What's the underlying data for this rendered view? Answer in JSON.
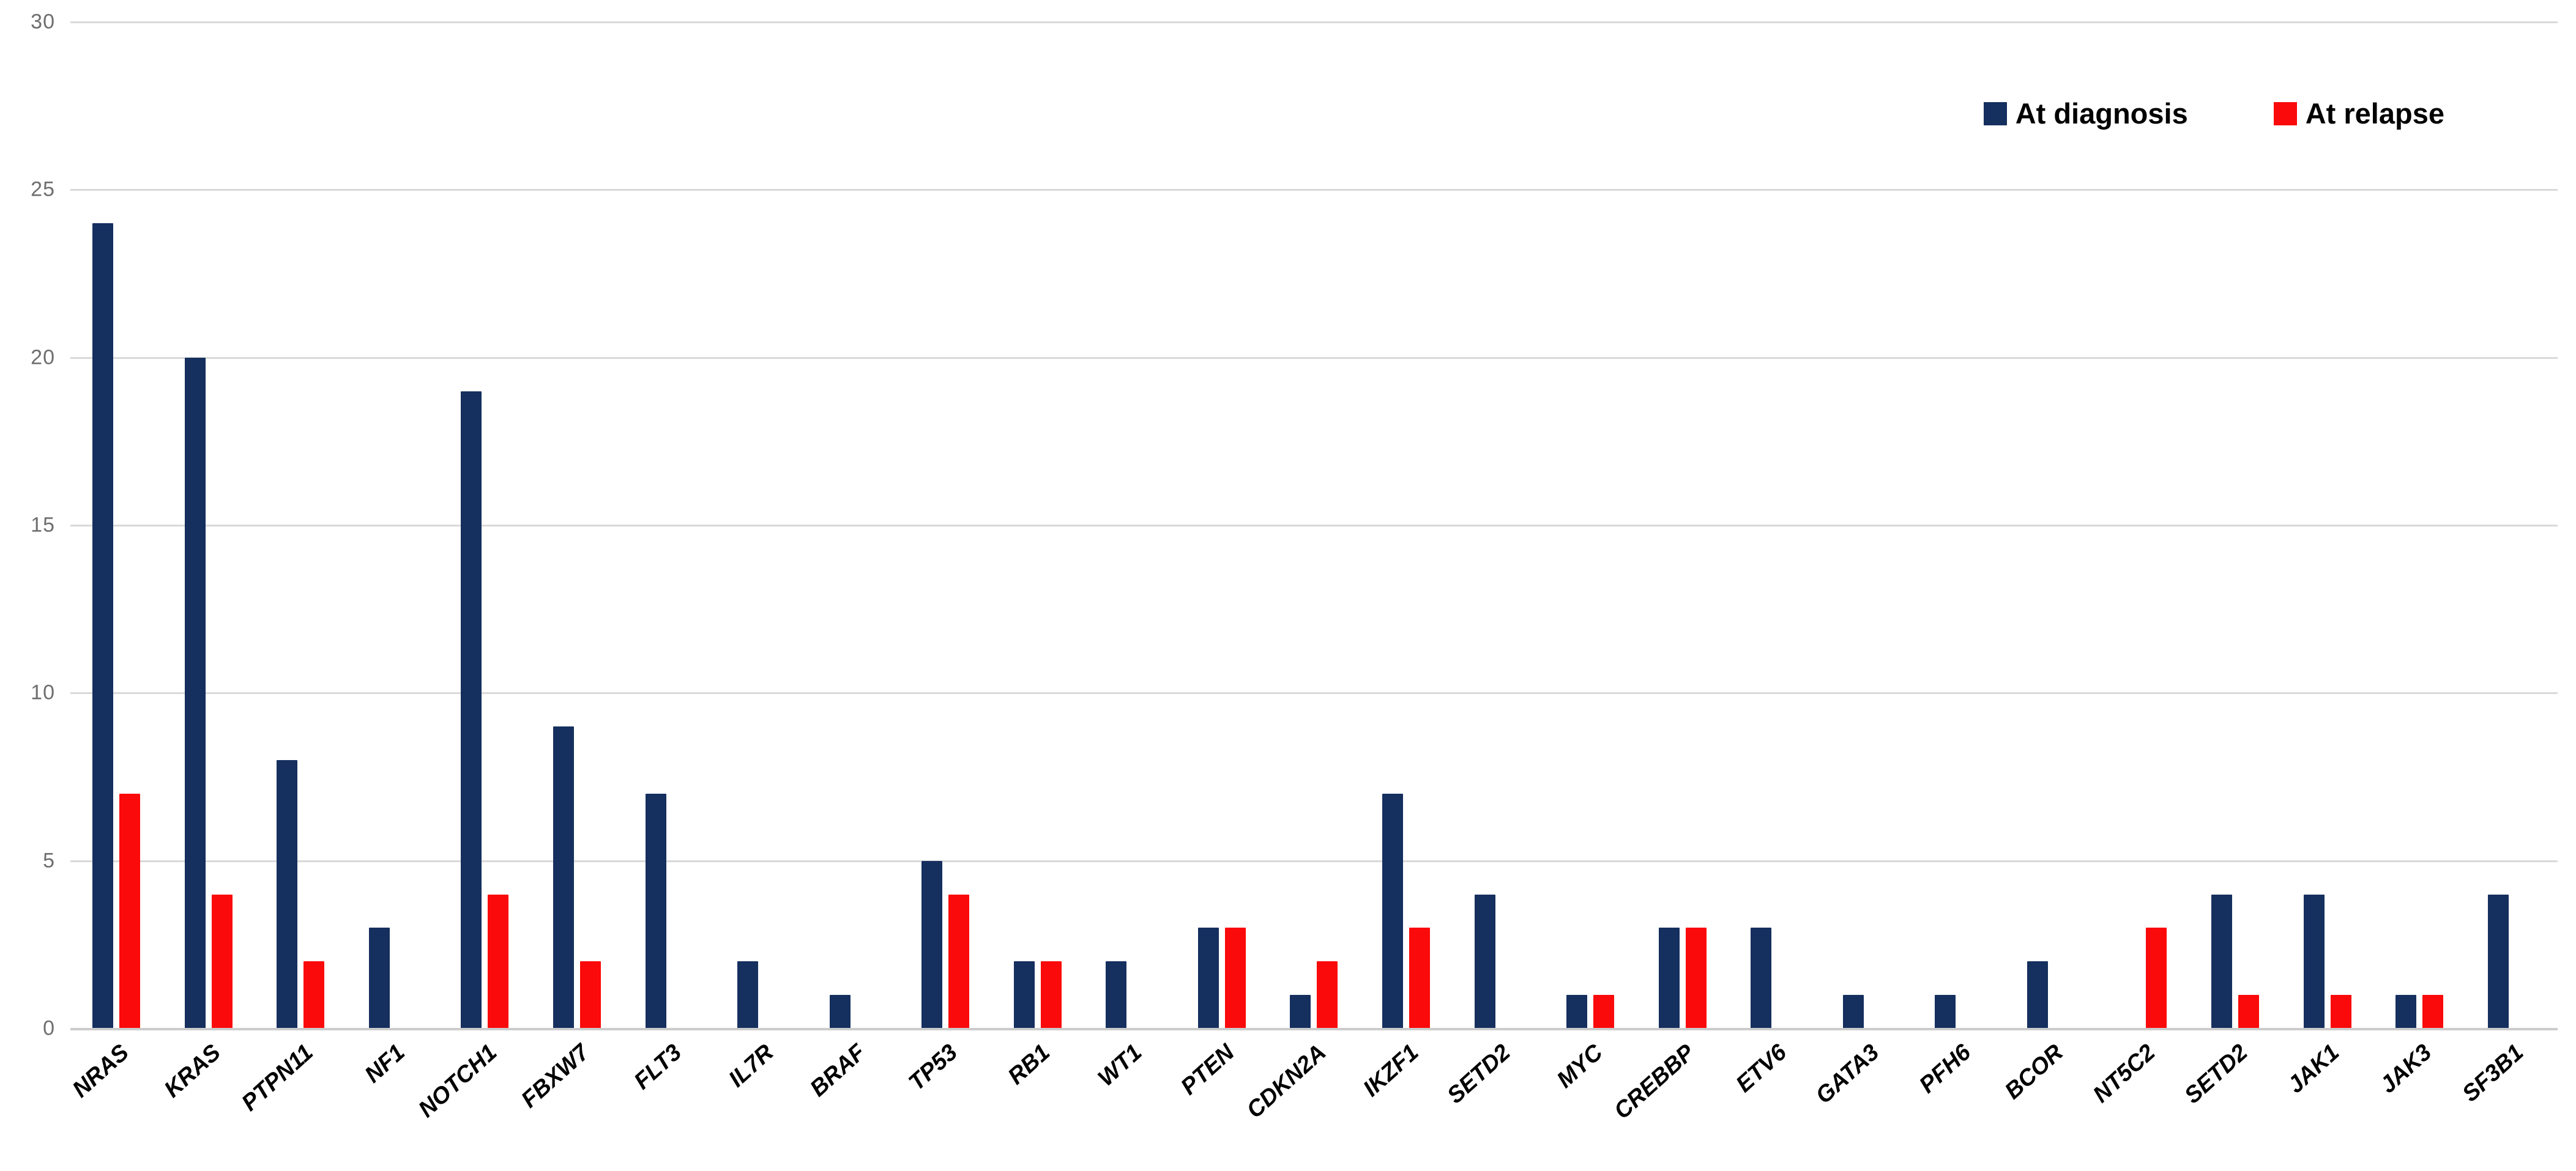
{
  "chart_data": {
    "type": "bar",
    "title": "",
    "categories": [
      "NRAS",
      "KRAS",
      "PTPN11",
      "NF1",
      "NOTCH1",
      "FBXW7",
      "FLT3",
      "IL7R",
      "BRAF",
      "TP53",
      "RB1",
      "WT1",
      "PTEN",
      "CDKN2A",
      "IKZF1",
      "SETD2",
      "MYC",
      "CREBBP",
      "ETV6",
      "GATA3",
      "PFH6",
      "BCOR",
      "NT5C2",
      "SETD2",
      "JAK1",
      "JAK3",
      "SF3B1"
    ],
    "series": [
      {
        "name": "At diagnosis",
        "color": "#152F5E",
        "values": [
          24,
          20,
          8,
          3,
          19,
          9,
          7,
          2,
          1,
          5,
          2,
          2,
          3,
          1,
          7,
          4,
          1,
          3,
          3,
          1,
          1,
          2,
          0,
          4,
          4,
          1,
          4
        ]
      },
      {
        "name": "At relapse",
        "color": "#FA0A0A",
        "values": [
          7,
          4,
          2,
          0,
          4,
          2,
          0,
          0,
          0,
          4,
          2,
          0,
          3,
          2,
          3,
          0,
          1,
          3,
          0,
          0,
          0,
          0,
          3,
          1,
          1,
          1,
          0
        ]
      }
    ],
    "ylim": [
      0,
      30
    ],
    "yticks": [
      0,
      5,
      10,
      15,
      20,
      25,
      30
    ],
    "xlabel": "",
    "ylabel": "",
    "grid": true,
    "legend_position": "top-right",
    "colors": {
      "background": "#ffffff",
      "grid": "#d9d9d9",
      "axis_text": "#6e6e6e",
      "category_text": "#000000"
    }
  },
  "legend": {
    "diagnosis_label": "At diagnosis",
    "relapse_label": "At relapse"
  }
}
